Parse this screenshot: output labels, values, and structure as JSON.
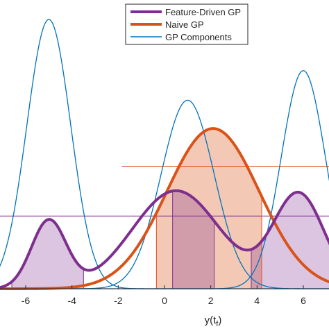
{
  "chart_data": {
    "type": "line",
    "title": "",
    "xlabel": "y(t_f)",
    "xlabel_main": "y(t",
    "xlabel_sub": "f",
    "xlabel_close": ")",
    "ylabel": "",
    "xlim": [
      -7.2,
      7.2
    ],
    "ylim": [
      0,
      1.08
    ],
    "x_ticks": [
      "-6",
      "-4",
      "-2",
      "0",
      "2",
      "4",
      "6"
    ],
    "x_tick_values": [
      -6,
      -4,
      -2,
      0,
      2,
      4,
      6
    ],
    "grid": false,
    "legend_position": "top-right",
    "series": [
      {
        "name": "Feature-Driven GP",
        "kind": "mixture",
        "color": "#7E2F8E",
        "components": [
          {
            "mean": -5.0,
            "sd": 0.75,
            "weight": 0.252
          },
          {
            "mean": 0.5,
            "sd": 1.9,
            "weight": 0.364
          },
          {
            "mean": 5.8,
            "sd": 1.1,
            "weight": 0.351
          }
        ],
        "threshold": 0.27,
        "highlight_intervals": [
          [
            -6.6,
            -3.5
          ],
          [
            0.35,
            2.15
          ],
          [
            3.75,
            7.2
          ]
        ],
        "hdr_bounds": [
          -6.6,
          -3.5,
          0.35,
          2.15,
          3.75
        ]
      },
      {
        "name": "Naive GP",
        "kind": "gaussian",
        "color": "#D95319",
        "mean": 2.1,
        "sd": 2.0,
        "peak": 0.595,
        "threshold": 0.455,
        "highlight_intervals": [
          [
            -0.35,
            4.2
          ]
        ],
        "hdr_bounds": [
          -0.35,
          4.2
        ]
      },
      {
        "name": "GP Components",
        "kind": "components",
        "color": "#0072BD",
        "components": [
          {
            "mean": -5.0,
            "sd": 0.95,
            "peak": 1.0
          },
          {
            "mean": 1.0,
            "sd": 1.15,
            "peak": 0.7
          },
          {
            "mean": 6.0,
            "sd": 0.95,
            "peak": 0.81
          }
        ]
      }
    ]
  }
}
